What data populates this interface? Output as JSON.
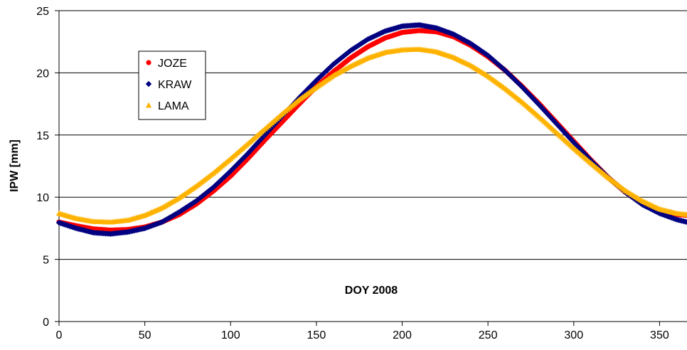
{
  "chart_data": {
    "type": "scatter",
    "title": "",
    "xlabel": "DOY 2008",
    "ylabel": "IPW [mm]",
    "xlim": [
      0,
      366
    ],
    "ylim": [
      0,
      25
    ],
    "xticks": [
      0,
      50,
      100,
      150,
      200,
      250,
      300,
      350
    ],
    "yticks": [
      0,
      5,
      10,
      15,
      20,
      25
    ],
    "grid": "horizontal",
    "legend_position": "upper-left",
    "series": [
      {
        "name": "JOZE",
        "marker": "circle",
        "color": "#ff0000",
        "x": [
          0,
          10,
          20,
          30,
          40,
          50,
          60,
          70,
          80,
          90,
          100,
          110,
          120,
          130,
          140,
          150,
          160,
          170,
          180,
          190,
          200,
          210,
          220,
          230,
          240,
          250,
          260,
          270,
          280,
          290,
          300,
          310,
          320,
          330,
          340,
          350,
          360,
          366
        ],
        "y": [
          8.0,
          7.7,
          7.45,
          7.35,
          7.4,
          7.6,
          8.0,
          8.6,
          9.45,
          10.5,
          11.7,
          13.1,
          14.6,
          16.05,
          17.5,
          18.9,
          20.1,
          21.2,
          22.1,
          22.8,
          23.25,
          23.4,
          23.3,
          22.9,
          22.2,
          21.3,
          20.2,
          18.9,
          17.5,
          16.0,
          14.5,
          13.0,
          11.6,
          10.4,
          9.5,
          8.9,
          8.6,
          8.55
        ]
      },
      {
        "name": "KRAW",
        "marker": "diamond",
        "color": "#000080",
        "x": [
          0,
          10,
          20,
          30,
          40,
          50,
          60,
          70,
          80,
          90,
          100,
          110,
          120,
          130,
          140,
          150,
          160,
          170,
          180,
          190,
          200,
          210,
          220,
          230,
          240,
          250,
          260,
          270,
          280,
          290,
          300,
          310,
          320,
          330,
          340,
          350,
          360,
          366
        ],
        "y": [
          7.95,
          7.5,
          7.15,
          7.05,
          7.2,
          7.5,
          8.0,
          8.8,
          9.7,
          10.8,
          12.1,
          13.5,
          15.0,
          16.5,
          18.0,
          19.4,
          20.7,
          21.8,
          22.7,
          23.35,
          23.75,
          23.85,
          23.6,
          23.1,
          22.35,
          21.4,
          20.2,
          18.85,
          17.4,
          15.9,
          14.4,
          12.95,
          11.6,
          10.4,
          9.4,
          8.7,
          8.2,
          8.0
        ]
      },
      {
        "name": "LAMA",
        "marker": "triangle",
        "color": "#ffb300",
        "x": [
          0,
          10,
          20,
          30,
          40,
          50,
          60,
          70,
          80,
          90,
          100,
          110,
          120,
          130,
          140,
          150,
          160,
          170,
          180,
          190,
          200,
          210,
          220,
          230,
          240,
          250,
          260,
          270,
          280,
          290,
          300,
          310,
          320,
          330,
          340,
          350,
          360,
          366
        ],
        "y": [
          8.7,
          8.3,
          8.05,
          8.0,
          8.15,
          8.55,
          9.15,
          9.95,
          10.9,
          11.95,
          13.1,
          14.3,
          15.5,
          16.7,
          17.85,
          18.85,
          19.8,
          20.55,
          21.2,
          21.65,
          21.85,
          21.9,
          21.7,
          21.25,
          20.6,
          19.75,
          18.75,
          17.65,
          16.45,
          15.2,
          13.95,
          12.75,
          11.6,
          10.55,
          9.7,
          9.05,
          8.7,
          8.6
        ]
      }
    ]
  }
}
